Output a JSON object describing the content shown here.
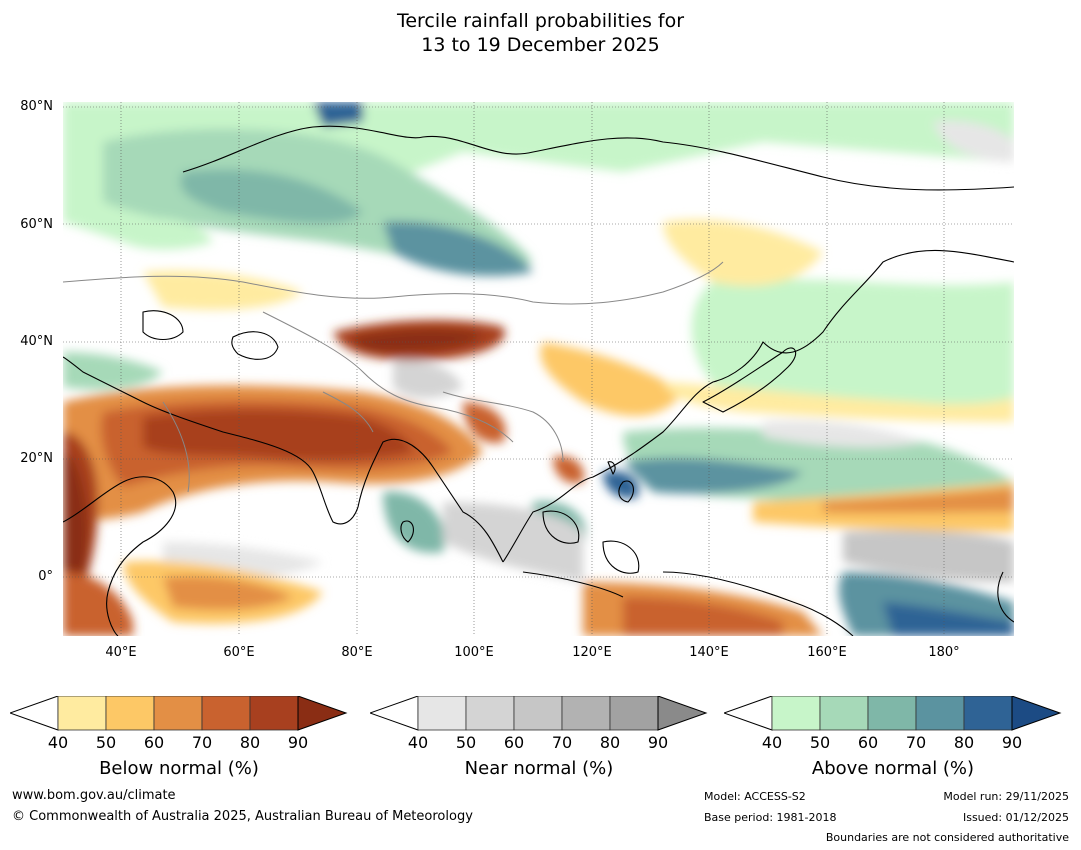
{
  "title_line1": "Tercile rainfall probabilities for",
  "title_line2": "13 to 19 December 2025",
  "lat_labels": [
    "80°N",
    "60°N",
    "40°N",
    "20°N",
    "0°"
  ],
  "lon_labels": [
    "40°E",
    "60°E",
    "80°E",
    "100°E",
    "120°E",
    "140°E",
    "160°E",
    "180°"
  ],
  "colorbars": {
    "below": {
      "title": "Below normal (%)",
      "ticks": [
        "40",
        "50",
        "60",
        "70",
        "80",
        "90"
      ],
      "colors": [
        "#ffeba0",
        "#fdc866",
        "#e38f45",
        "#c9622f",
        "#a8401f",
        "#8a2d14"
      ]
    },
    "near": {
      "title": "Near normal (%)",
      "ticks": [
        "40",
        "50",
        "60",
        "70",
        "80",
        "90"
      ],
      "colors": [
        "#e6e6e6",
        "#d4d4d4",
        "#c6c6c6",
        "#b2b2b2",
        "#a2a2a2",
        "#8a8a8a"
      ]
    },
    "above": {
      "title": "Above normal (%)",
      "ticks": [
        "40",
        "50",
        "60",
        "70",
        "80",
        "90"
      ],
      "colors": [
        "#c7f5c9",
        "#a6d9b8",
        "#7fb7a8",
        "#5b93a0",
        "#2f6395",
        "#1c4b84"
      ]
    }
  },
  "footer": {
    "website": "www.bom.gov.au/climate",
    "copyright": "© Commonwealth of Australia 2025, Australian Bureau of Meteorology",
    "model": "Model: ACCESS-S2",
    "base_period": "Base period: 1981-2018",
    "model_run": "Model run: 29/11/2025",
    "issued": "Issued: 01/12/2025",
    "disclaimer": "Boundaries are not considered authoritative"
  }
}
